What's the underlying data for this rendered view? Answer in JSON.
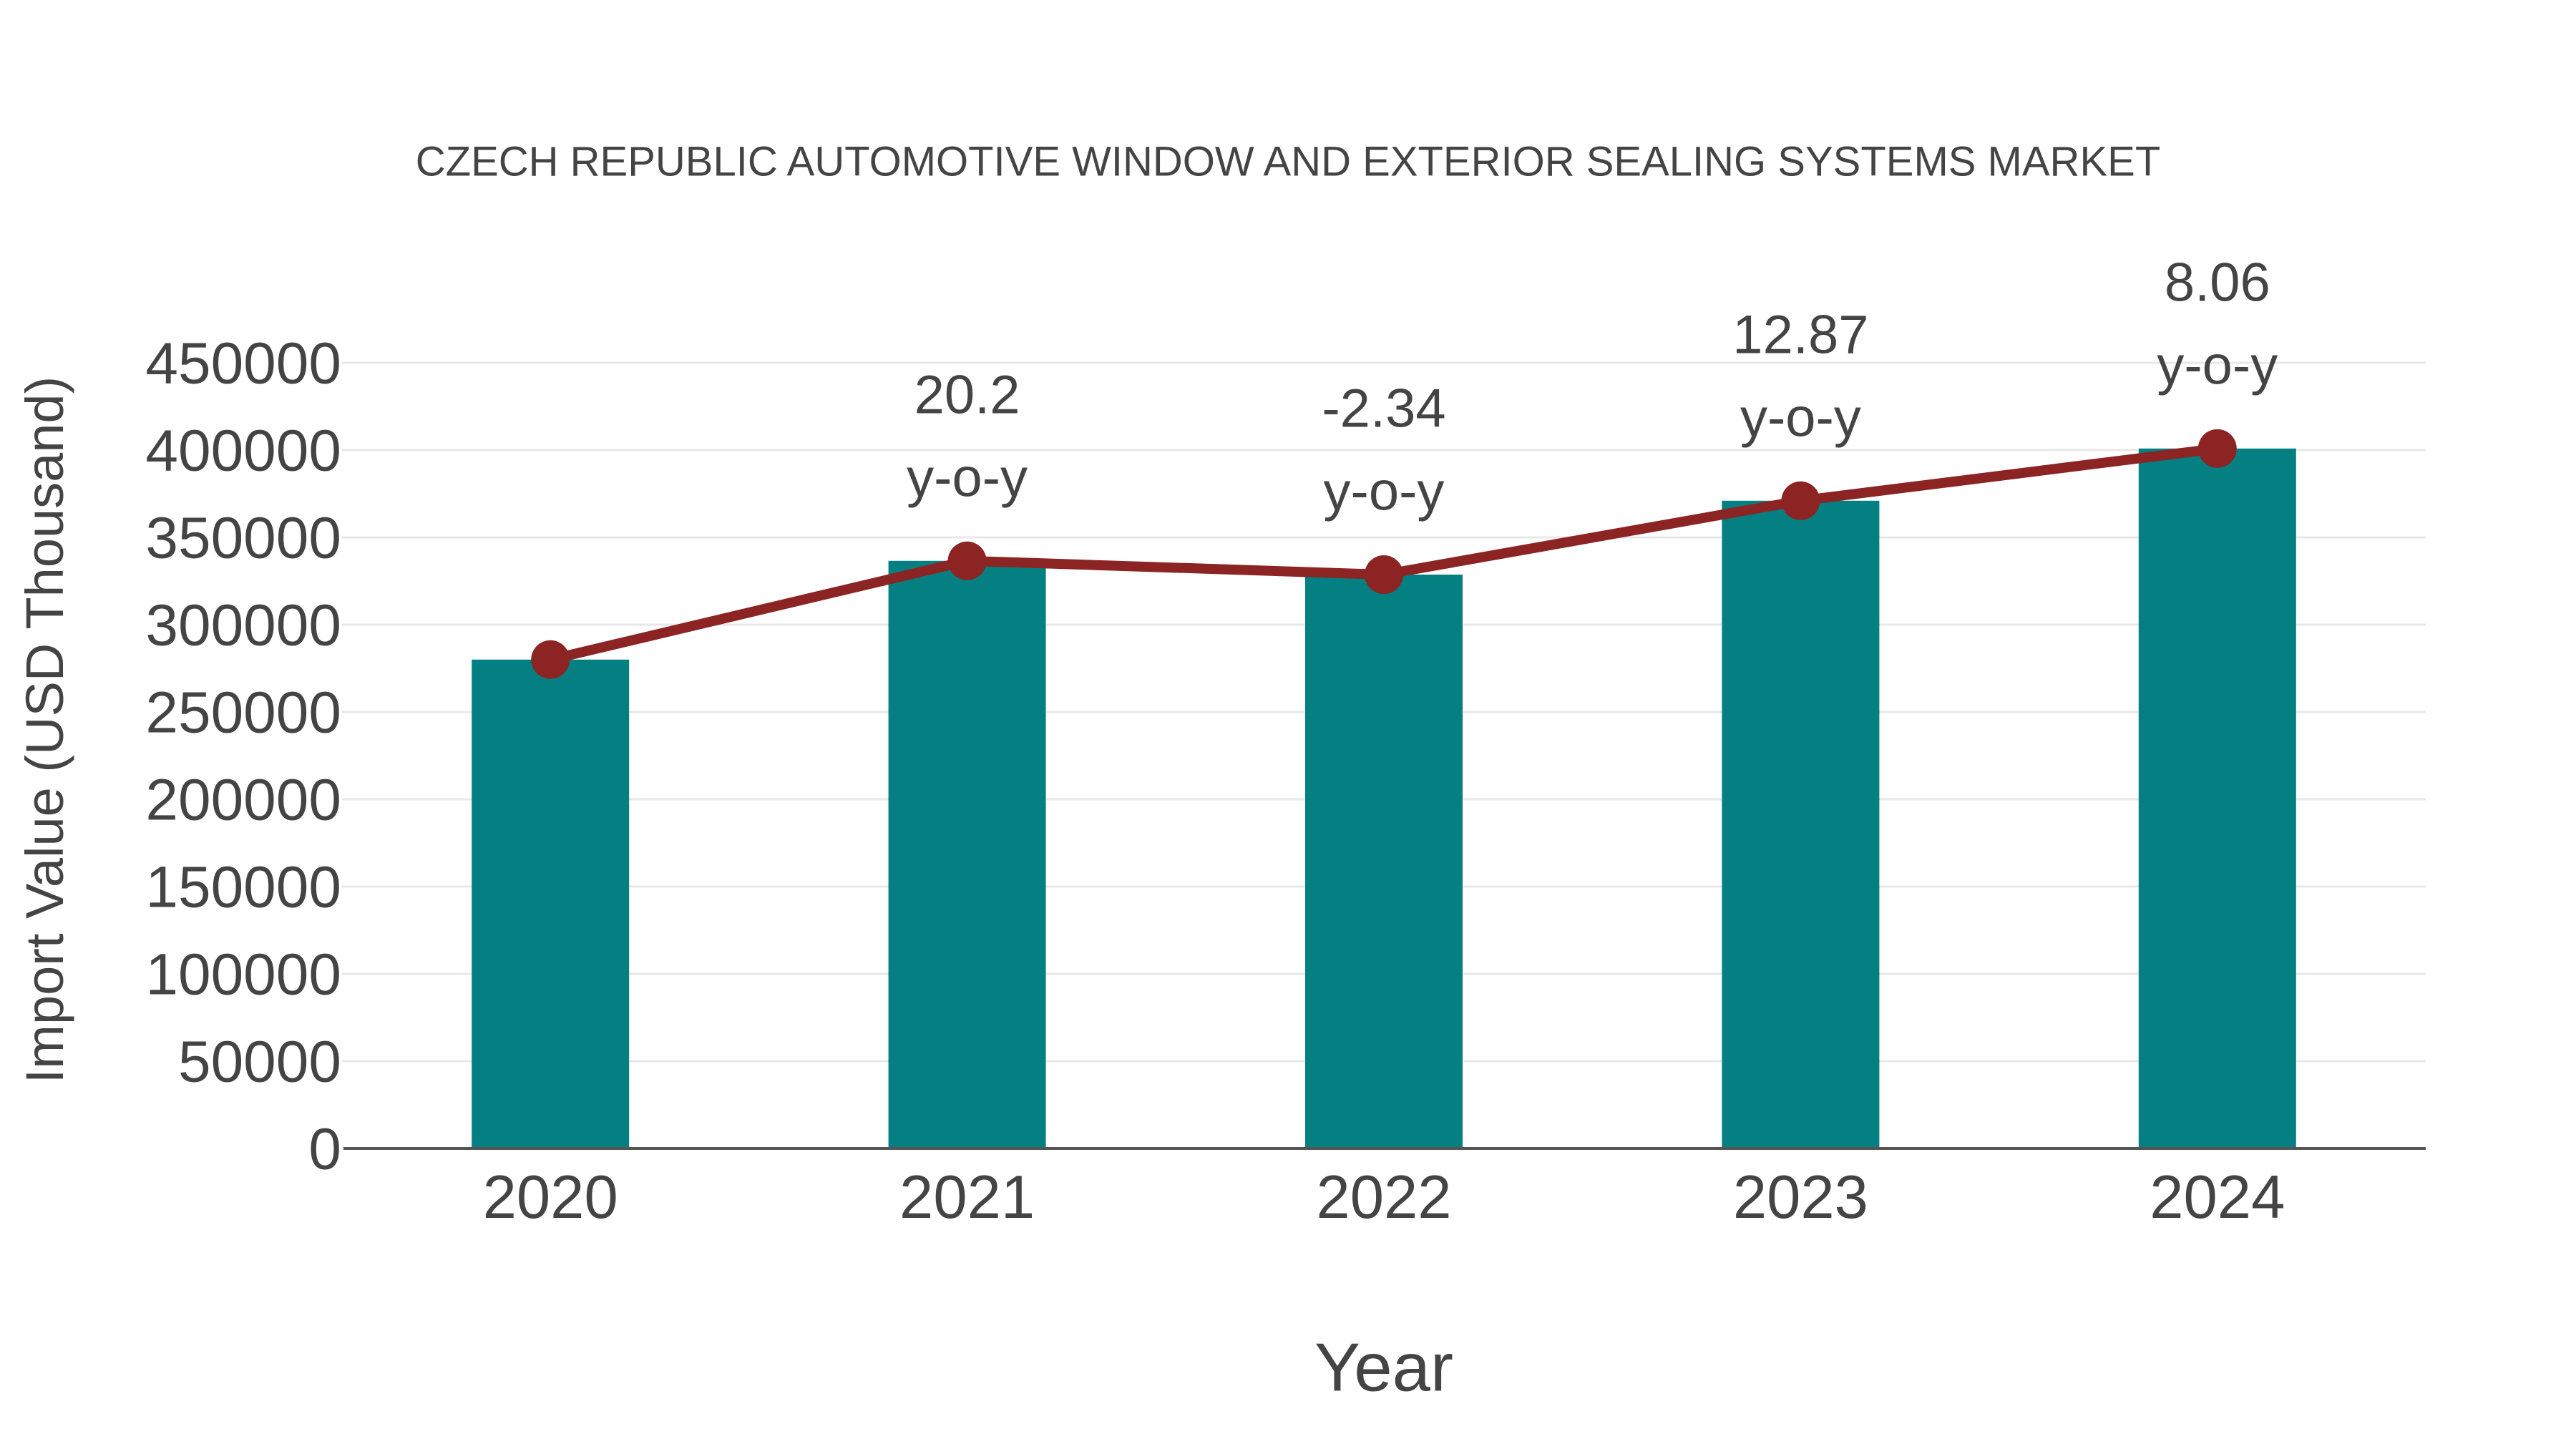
{
  "chart_data": {
    "type": "bar",
    "title": "CZECH REPUBLIC AUTOMOTIVE WINDOW AND EXTERIOR SEALING SYSTEMS MARKET",
    "xlabel": "Year",
    "ylabel": "Import Value (USD Thousand)",
    "categories": [
      "2020",
      "2021",
      "2022",
      "2023",
      "2024"
    ],
    "series": [
      {
        "name": "Import Value (USD Thousand)",
        "type": "bar",
        "values": [
          280000,
          336560,
          328685,
          370986,
          400891
        ],
        "color": "#048083"
      },
      {
        "name": "y-o-y growth (%)",
        "type": "line",
        "plotted_on": "bar_tops",
        "values": [
          null,
          20.2,
          -2.34,
          12.87,
          8.06
        ],
        "color": "#8B2423"
      }
    ],
    "annotations": [
      {
        "category": "2021",
        "value_label": "20.2",
        "suffix": "y-o-y"
      },
      {
        "category": "2022",
        "value_label": "-2.34",
        "suffix": "y-o-y"
      },
      {
        "category": "2023",
        "value_label": "12.87",
        "suffix": "y-o-y"
      },
      {
        "category": "2024",
        "value_label": "8.06",
        "suffix": "y-o-y"
      }
    ],
    "ylim": [
      0,
      450000
    ],
    "ytick_step": 50000,
    "ytick_labels": [
      "0",
      "50000",
      "100000",
      "150000",
      "200000",
      "250000",
      "300000",
      "350000",
      "400000",
      "450000"
    ],
    "grid": true,
    "legend_position": "none",
    "colors": {
      "bar": "#048083",
      "line": "#8B2423",
      "text": "#444444",
      "grid": "#e8e8e8",
      "axis": "#555555",
      "background": "#ffffff"
    }
  }
}
